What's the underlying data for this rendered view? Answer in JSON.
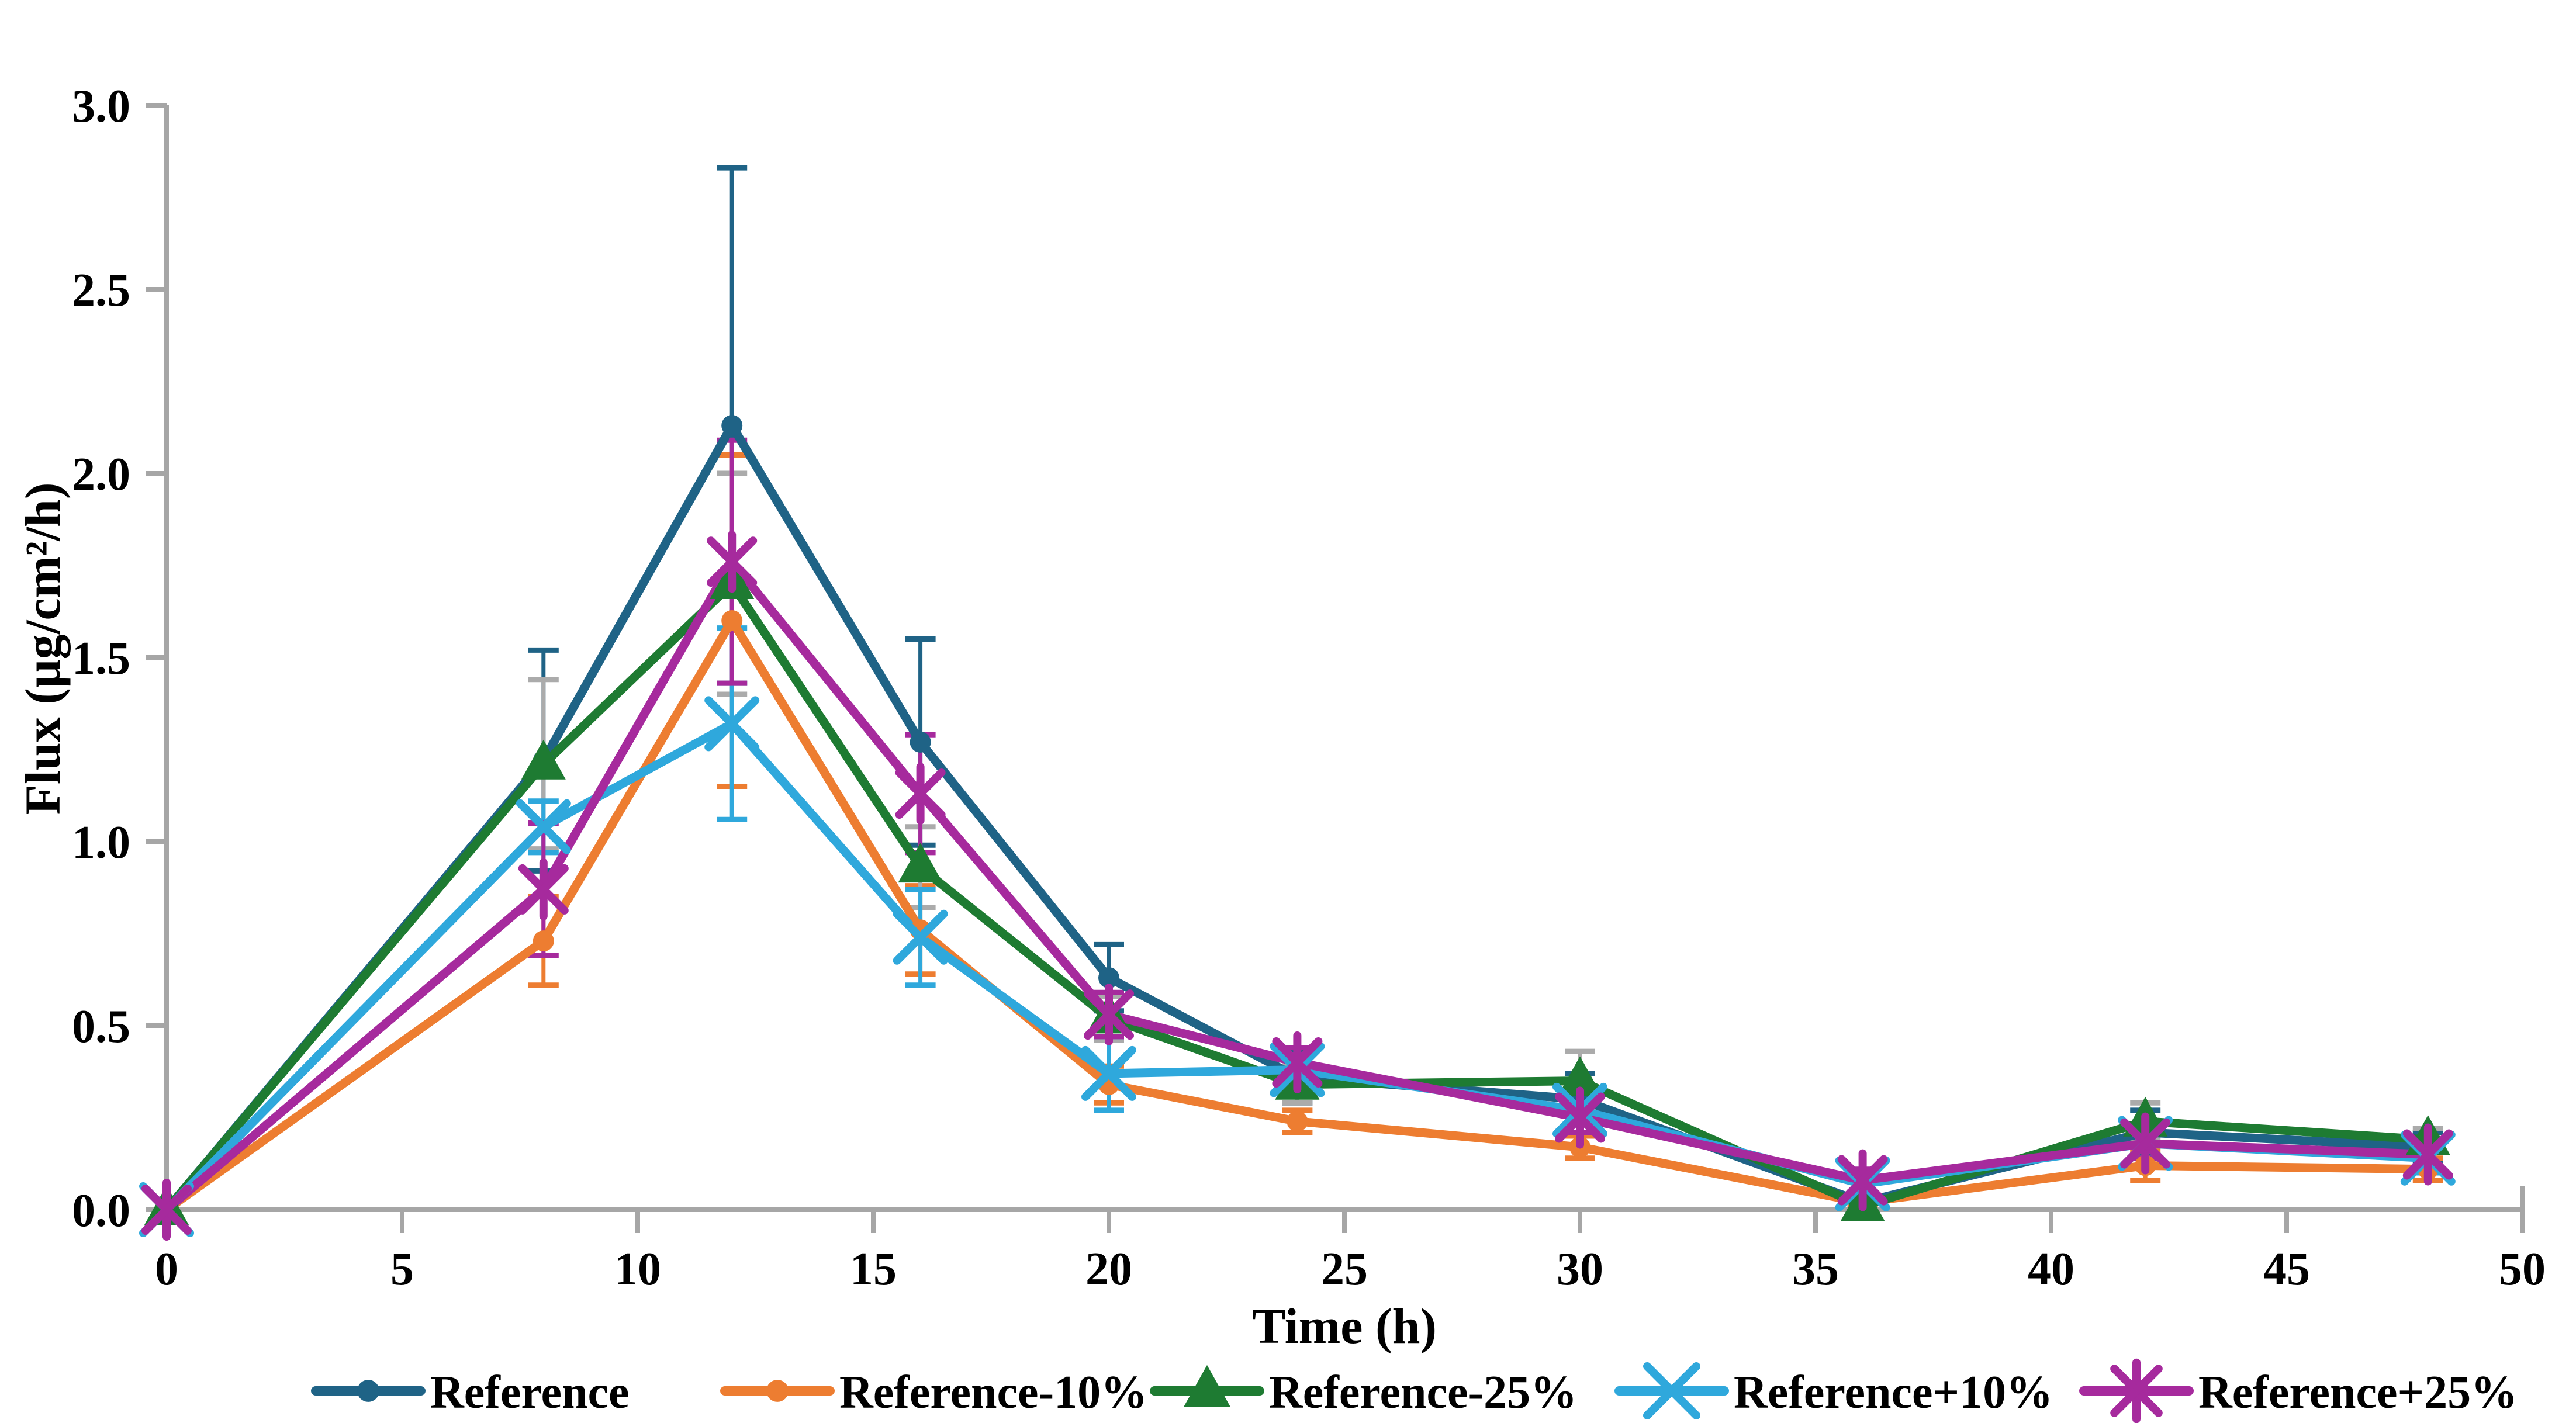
{
  "figure": {
    "background": "#FFFFFF",
    "axis_color": "#A6A6A6"
  },
  "chart_data": {
    "type": "line",
    "title": "",
    "xlabel": "Time (h)",
    "ylabel": "Flux (μg/cm²/h)",
    "grid": false,
    "legend_position": "bottom",
    "x": [
      0,
      8,
      12,
      16,
      20,
      24,
      30,
      36,
      42,
      48
    ],
    "axes": {
      "x": {
        "min": 0,
        "max": 50,
        "tick_step": 5,
        "ticks": [
          "0",
          "5",
          "10",
          "15",
          "20",
          "25",
          "30",
          "35",
          "40",
          "45",
          "50"
        ]
      },
      "y": {
        "min": 0.0,
        "max": 3.0,
        "tick_step": 0.5,
        "ticks": [
          "0.0",
          "0.5",
          "1.0",
          "1.5",
          "2.0",
          "2.5",
          "3.0"
        ]
      }
    },
    "series": [
      {
        "name": "Reference",
        "color": "#1F6386",
        "marker": "circle",
        "error_color": "#1F6386",
        "values": [
          0,
          1.22,
          2.13,
          1.27,
          0.63,
          0.36,
          0.3,
          0.02,
          0.21,
          0.17
        ],
        "errors": [
          0,
          0.3,
          0.7,
          0.28,
          0.09,
          0.07,
          0.07,
          0.02,
          0.06,
          0.04
        ]
      },
      {
        "name": "Reference-10%",
        "color": "#ED7D31",
        "marker": "circle",
        "error_color": "#ED7D31",
        "values": [
          0,
          0.73,
          1.6,
          0.76,
          0.34,
          0.24,
          0.17,
          0.02,
          0.12,
          0.11
        ],
        "errors": [
          0,
          0.12,
          0.45,
          0.12,
          0.05,
          0.03,
          0.03,
          0.01,
          0.04,
          0.03
        ]
      },
      {
        "name": "Reference-25%",
        "color": "#1E7B32",
        "marker": "triangle",
        "error_color": "#ABABAB",
        "values": [
          0,
          1.21,
          1.7,
          0.93,
          0.52,
          0.34,
          0.35,
          0.01,
          0.24,
          0.19
        ],
        "errors": [
          0,
          0.23,
          0.3,
          0.11,
          0.06,
          0.05,
          0.08,
          0.01,
          0.05,
          0.03
        ]
      },
      {
        "name": "Reference+10%",
        "color": "#2FA8DC",
        "marker": "x",
        "error_color": "#2FA8DC",
        "values": [
          0,
          1.04,
          1.32,
          0.74,
          0.37,
          0.38,
          0.27,
          0.07,
          0.18,
          0.14
        ],
        "errors": [
          0,
          0.07,
          0.26,
          0.13,
          0.1,
          0.04,
          0.04,
          0.03,
          0.04,
          0.04
        ]
      },
      {
        "name": "Reference+25%",
        "color": "#A62A9D",
        "marker": "asterisk",
        "error_color": "#A62A9D",
        "values": [
          0,
          0.87,
          1.76,
          1.13,
          0.53,
          0.4,
          0.25,
          0.08,
          0.18,
          0.15
        ],
        "errors": [
          0,
          0.18,
          0.33,
          0.16,
          0.06,
          0.04,
          0.04,
          0.03,
          0.04,
          0.03
        ]
      }
    ]
  },
  "legend": {
    "items": [
      "Reference",
      "Reference-10%",
      "Reference-25%",
      "Reference+10%",
      "Reference+25%"
    ]
  }
}
